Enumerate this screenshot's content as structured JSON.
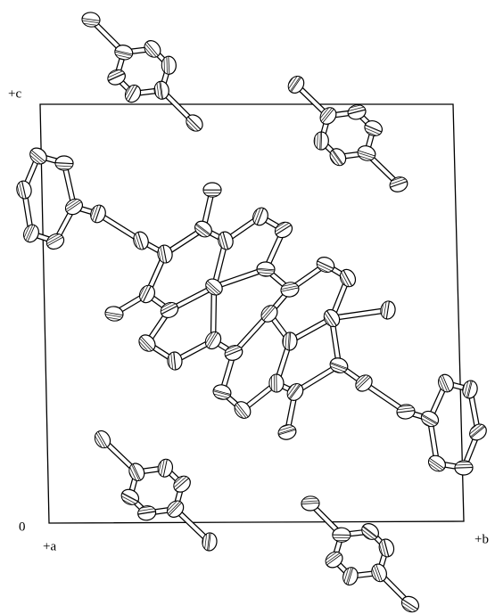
{
  "axes": {
    "c": "+c",
    "origin": "0",
    "a": "+a",
    "b": "+b"
  }
}
